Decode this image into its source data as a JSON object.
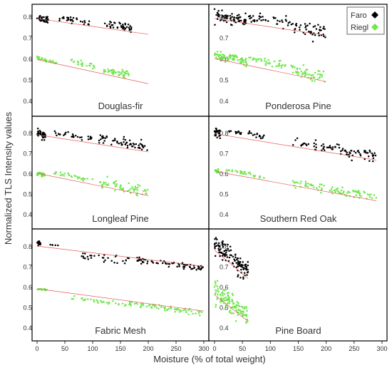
{
  "figure": {
    "ylabel": "Normalized TLS Intensity values",
    "xlabel": "Moisture (% of total weight)",
    "legend": [
      {
        "name": "Faro",
        "color": "#000000"
      },
      {
        "name": "Riegl",
        "color": "#6ee84a"
      }
    ],
    "x_ticks": [
      "0",
      "50",
      "100",
      "150",
      "200",
      "250",
      "300"
    ],
    "y_ticks": [
      "0.8",
      "0.7",
      "0.6",
      "0.5",
      "0.4"
    ]
  },
  "chart_data": [
    {
      "type": "scatter",
      "title": "Douglas-fir",
      "xlim": [
        0,
        300
      ],
      "ylim": [
        0.35,
        0.85
      ],
      "series": [
        {
          "name": "Faro",
          "color": "#000000",
          "x_range": [
            0,
            170
          ],
          "fit": [
            [
              0,
              0.79
            ],
            [
              200,
              0.715
            ]
          ],
          "clusters": [
            [
              0,
              20,
              0.79,
              0.015,
              34
            ],
            [
              40,
              105,
              0.78,
              0.012,
              28
            ],
            [
              120,
              170,
              0.755,
              0.015,
              42
            ]
          ]
        },
        {
          "name": "Riegl",
          "color": "#6ee84a",
          "x_range": [
            0,
            170
          ],
          "fit": [
            [
              0,
              0.595
            ],
            [
              200,
              0.48
            ]
          ],
          "clusters": [
            [
              0,
              35,
              0.59,
              0.008,
              25
            ],
            [
              60,
              105,
              0.575,
              0.01,
              22
            ],
            [
              120,
              165,
              0.535,
              0.014,
              46
            ]
          ]
        }
      ]
    },
    {
      "type": "scatter",
      "title": "Ponderosa Pine",
      "xlim": [
        0,
        300
      ],
      "ylim": [
        0.35,
        0.85
      ],
      "series": [
        {
          "name": "Faro",
          "color": "#000000",
          "x_range": [
            0,
            200
          ],
          "fit": [
            [
              0,
              0.79
            ],
            [
              200,
              0.71
            ]
          ],
          "clusters": [
            [
              0,
              60,
              0.79,
              0.02,
              70
            ],
            [
              60,
              140,
              0.78,
              0.02,
              40
            ],
            [
              140,
              200,
              0.735,
              0.03,
              45
            ]
          ]
        },
        {
          "name": "Riegl",
          "color": "#6ee84a",
          "x_range": [
            0,
            200
          ],
          "fit": [
            [
              0,
              0.6
            ],
            [
              200,
              0.49
            ]
          ],
          "clusters": [
            [
              0,
              60,
              0.6,
              0.015,
              80
            ],
            [
              60,
              140,
              0.58,
              0.015,
              40
            ],
            [
              140,
              200,
              0.525,
              0.03,
              50
            ]
          ]
        }
      ]
    },
    {
      "type": "scatter",
      "title": "Longleaf Pine",
      "xlim": [
        0,
        300
      ],
      "ylim": [
        0.35,
        0.85
      ],
      "series": [
        {
          "name": "Faro",
          "color": "#000000",
          "x_range": [
            0,
            200
          ],
          "fit": [
            [
              0,
              0.79
            ],
            [
              200,
              0.705
            ]
          ],
          "clusters": [
            [
              0,
              15,
              0.79,
              0.015,
              40
            ],
            [
              30,
              100,
              0.785,
              0.01,
              30
            ],
            [
              110,
              200,
              0.75,
              0.02,
              60
            ]
          ]
        },
        {
          "name": "Riegl",
          "color": "#6ee84a",
          "x_range": [
            0,
            200
          ],
          "fit": [
            [
              0,
              0.6
            ],
            [
              200,
              0.49
            ]
          ],
          "clusters": [
            [
              0,
              15,
              0.595,
              0.008,
              35
            ],
            [
              30,
              100,
              0.585,
              0.008,
              30
            ],
            [
              110,
              200,
              0.53,
              0.02,
              60
            ]
          ]
        }
      ]
    },
    {
      "type": "scatter",
      "title": "Southern Red Oak",
      "xlim": [
        0,
        300
      ],
      "ylim": [
        0.35,
        0.85
      ],
      "series": [
        {
          "name": "Faro",
          "color": "#000000",
          "x_range": [
            0,
            290
          ],
          "fit": [
            [
              0,
              0.795
            ],
            [
              290,
              0.665
            ]
          ],
          "clusters": [
            [
              0,
              10,
              0.8,
              0.02,
              30
            ],
            [
              20,
              90,
              0.795,
              0.01,
              30
            ],
            [
              140,
              290,
              0.72,
              0.025,
              85
            ]
          ]
        },
        {
          "name": "Riegl",
          "color": "#6ee84a",
          "x_range": [
            0,
            290
          ],
          "fit": [
            [
              0,
              0.61
            ],
            [
              290,
              0.465
            ]
          ],
          "clusters": [
            [
              0,
              10,
              0.61,
              0.008,
              20
            ],
            [
              20,
              90,
              0.6,
              0.006,
              30
            ],
            [
              140,
              290,
              0.515,
              0.02,
              85
            ]
          ]
        }
      ]
    },
    {
      "type": "scatter",
      "title": "Fabric Mesh",
      "xlim": [
        0,
        300
      ],
      "ylim": [
        0.35,
        0.85
      ],
      "series": [
        {
          "name": "Faro",
          "color": "#000000",
          "x_range": [
            0,
            300
          ],
          "fit": [
            [
              0,
              0.8
            ],
            [
              300,
              0.7
            ]
          ],
          "clusters": [
            [
              0,
              10,
              0.81,
              0.01,
              12
            ],
            [
              20,
              40,
              0.805,
              0.005,
              5
            ],
            [
              80,
              170,
              0.74,
              0.02,
              30
            ],
            [
              170,
              300,
              0.712,
              0.012,
              70
            ]
          ]
        },
        {
          "name": "Riegl",
          "color": "#6ee84a",
          "x_range": [
            0,
            300
          ],
          "fit": [
            [
              0,
              0.59
            ],
            [
              300,
              0.48
            ]
          ],
          "clusters": [
            [
              0,
              20,
              0.585,
              0.004,
              15
            ],
            [
              60,
              160,
              0.53,
              0.01,
              30
            ],
            [
              160,
              300,
              0.495,
              0.01,
              70
            ]
          ]
        }
      ]
    },
    {
      "type": "scatter",
      "title": "Pine Board",
      "xlim": [
        0,
        300
      ],
      "ylim": [
        0.35,
        0.85
      ],
      "series": [
        {
          "name": "Faro",
          "color": "#000000",
          "x_range": [
            0,
            60
          ],
          "fit": [
            [
              0,
              0.78
            ],
            [
              60,
              0.64
            ]
          ],
          "clusters": [
            [
              0,
              60,
              0.74,
              0.04,
              120
            ]
          ]
        },
        {
          "name": "Riegl",
          "color": "#6ee84a",
          "x_range": [
            0,
            60
          ],
          "fit": [
            [
              0,
              0.56
            ],
            [
              60,
              0.43
            ]
          ],
          "clusters": [
            [
              0,
              60,
              0.52,
              0.04,
              120
            ]
          ]
        }
      ]
    }
  ]
}
